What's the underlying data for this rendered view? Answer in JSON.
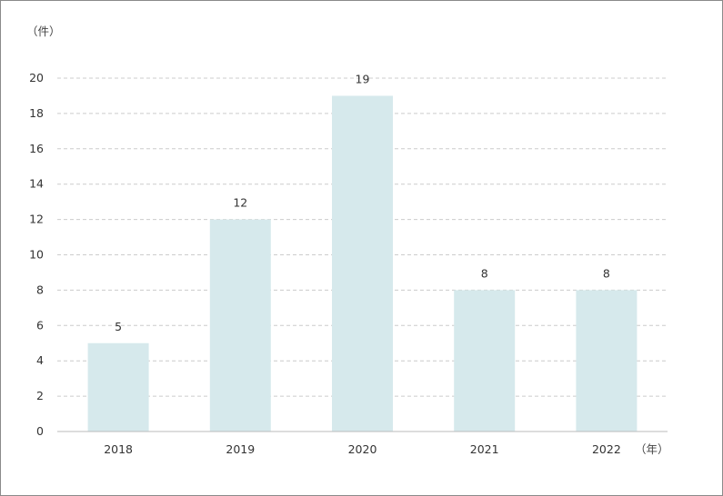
{
  "chart_data": {
    "type": "bar",
    "categories": [
      "2018",
      "2019",
      "2020",
      "2021",
      "2022"
    ],
    "values": [
      5,
      12,
      19,
      8,
      8
    ],
    "y_unit_label": "（件）",
    "x_unit_label": "（年）",
    "ylim": [
      0,
      20
    ],
    "yticks": [
      0,
      2,
      4,
      6,
      8,
      10,
      12,
      14,
      16,
      18,
      20
    ],
    "grid": "horizontal-dashed",
    "bar_color": "#d6e9ec",
    "grid_color": "#cccccc",
    "axis_color": "#bbbbbb"
  }
}
